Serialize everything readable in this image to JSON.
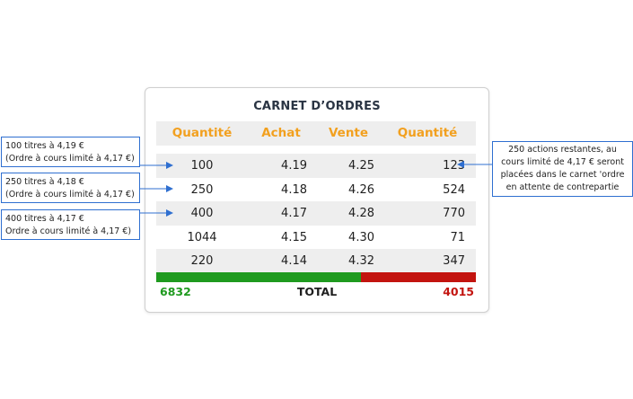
{
  "order_book": {
    "title": "CARNET D’ORDRES",
    "headers": [
      "Quantité",
      "Achat",
      "Vente",
      "Quantité"
    ],
    "rows": [
      {
        "buy_qty": "100",
        "buy": "4.19",
        "sell": "4.25",
        "sell_qty": "123"
      },
      {
        "buy_qty": "250",
        "buy": "4.18",
        "sell": "4.26",
        "sell_qty": "524"
      },
      {
        "buy_qty": "400",
        "buy": "4.17",
        "sell": "4.28",
        "sell_qty": "770"
      },
      {
        "buy_qty": "1044",
        "buy": "4.15",
        "sell": "4.30",
        "sell_qty": "71"
      },
      {
        "buy_qty": "220",
        "buy": "4.14",
        "sell": "4.32",
        "sell_qty": "347"
      }
    ],
    "total_buy": "6832",
    "total_label": "TOTAL",
    "total_sell": "4015"
  },
  "annotations": {
    "left": [
      {
        "line1": "100 titres à 4,19 €",
        "line2": "(Ordre à cours limité à 4,17 €)"
      },
      {
        "line1": "250 titres à 4,18 €",
        "line2": "(Ordre à cours limité à 4,17 €)"
      },
      {
        "line1": "400 titres à 4,17 €",
        "line2": "Ordre à cours limité à 4,17 €)"
      }
    ],
    "right": {
      "lines": [
        "250 actions restantes, au",
        "cours limité de 4,17 € seront",
        "placées dans le carnet 'ordre",
        "en attente de contrepartie"
      ]
    }
  },
  "colors": {
    "header": "#f2a01f",
    "buy_total": "#1f9a1f",
    "sell_total": "#c3140f",
    "annotation_border": "#2f6fd0"
  }
}
